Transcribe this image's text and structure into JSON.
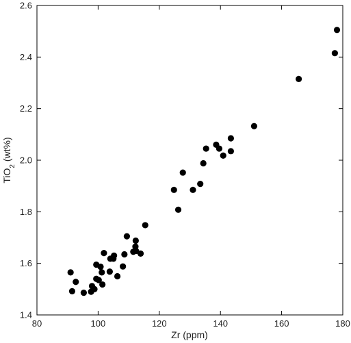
{
  "chart_data": {
    "type": "scatter",
    "title": "",
    "xlabel": "Zr (ppm)",
    "ylabel_main": "TiO",
    "ylabel_sub": "2",
    "ylabel_tail": " (wt%)",
    "xlim": [
      80,
      180
    ],
    "ylim": [
      1.4,
      2.6
    ],
    "x_ticks": [
      80,
      100,
      120,
      140,
      160,
      180
    ],
    "y_ticks": [
      1.4,
      1.6,
      1.8,
      2.0,
      2.2,
      2.4,
      2.6
    ],
    "x_tick_labels": [
      "80",
      "100",
      "120",
      "140",
      "160",
      "180"
    ],
    "y_tick_labels": [
      "1.4",
      "1.6",
      "1.8",
      "2.0",
      "2.2",
      "2.4",
      "2.6"
    ],
    "grid": false,
    "legend": "none",
    "marker_color": "#000000",
    "points": [
      {
        "x": 91.0,
        "y": 1.565
      },
      {
        "x": 91.5,
        "y": 1.492
      },
      {
        "x": 92.7,
        "y": 1.528
      },
      {
        "x": 95.3,
        "y": 1.486
      },
      {
        "x": 97.7,
        "y": 1.49
      },
      {
        "x": 98.0,
        "y": 1.512
      },
      {
        "x": 98.8,
        "y": 1.5
      },
      {
        "x": 99.4,
        "y": 1.54
      },
      {
        "x": 99.4,
        "y": 1.595
      },
      {
        "x": 100.2,
        "y": 1.535
      },
      {
        "x": 100.8,
        "y": 1.587
      },
      {
        "x": 101.2,
        "y": 1.565
      },
      {
        "x": 101.4,
        "y": 1.518
      },
      {
        "x": 101.9,
        "y": 1.64
      },
      {
        "x": 103.8,
        "y": 1.568
      },
      {
        "x": 104.0,
        "y": 1.618
      },
      {
        "x": 105.0,
        "y": 1.618
      },
      {
        "x": 105.2,
        "y": 1.63
      },
      {
        "x": 106.3,
        "y": 1.55
      },
      {
        "x": 108.1,
        "y": 1.588
      },
      {
        "x": 108.6,
        "y": 1.635
      },
      {
        "x": 109.4,
        "y": 1.705
      },
      {
        "x": 111.5,
        "y": 1.645
      },
      {
        "x": 112.2,
        "y": 1.665
      },
      {
        "x": 112.3,
        "y": 1.688
      },
      {
        "x": 112.4,
        "y": 1.648
      },
      {
        "x": 113.9,
        "y": 1.638
      },
      {
        "x": 115.4,
        "y": 1.748
      },
      {
        "x": 124.8,
        "y": 1.885
      },
      {
        "x": 126.2,
        "y": 1.808
      },
      {
        "x": 127.7,
        "y": 1.952
      },
      {
        "x": 131.0,
        "y": 1.885
      },
      {
        "x": 133.4,
        "y": 1.908
      },
      {
        "x": 134.4,
        "y": 1.988
      },
      {
        "x": 135.3,
        "y": 2.045
      },
      {
        "x": 138.6,
        "y": 2.06
      },
      {
        "x": 139.6,
        "y": 2.045
      },
      {
        "x": 140.9,
        "y": 2.018
      },
      {
        "x": 143.4,
        "y": 2.035
      },
      {
        "x": 143.4,
        "y": 2.085
      },
      {
        "x": 151.0,
        "y": 2.132
      },
      {
        "x": 165.6,
        "y": 2.315
      },
      {
        "x": 177.4,
        "y": 2.415
      },
      {
        "x": 178.1,
        "y": 2.505
      }
    ]
  }
}
